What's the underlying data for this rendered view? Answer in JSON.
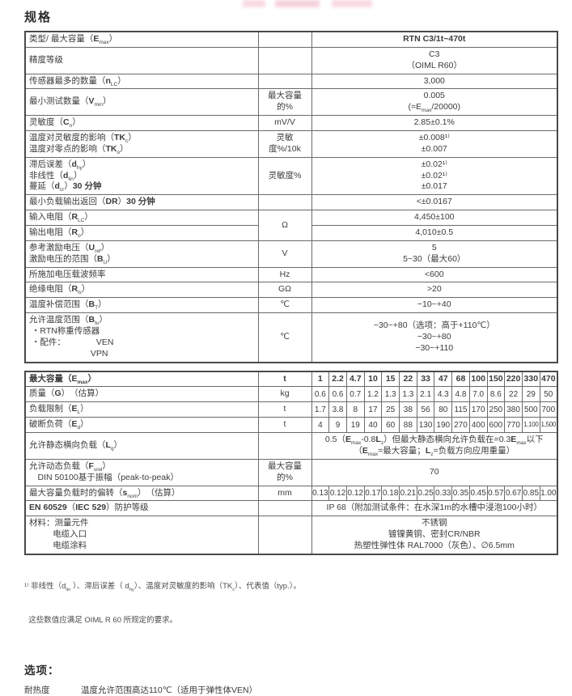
{
  "page": {
    "title": "规格"
  },
  "spec_table": {
    "rows": [
      {
        "label": "类型/ 最大容量（*{E}_{max}）",
        "unit": "",
        "value": "RTN C3/1t~470t"
      },
      {
        "label": "精度等级",
        "unit": "",
        "value": "C3\n（OIML R60）"
      },
      {
        "label": "传感器最多的数量（*{n}_{LC}）",
        "unit": "",
        "value": "3,000"
      },
      {
        "label": "最小测试数量（*{V}_{min}）",
        "unit": "最大容量的%",
        "value": "0.005\n(=E_{max}/20000)"
      },
      {
        "label": "灵敏度（*{C}_{n}）",
        "unit": "mV/V",
        "value": "2.85±0.1%"
      },
      {
        "label": "温度对灵敏度的影响（*{TK}_{c}）\n温度对零点的影响（*{TK}_{o}）",
        "unit": "灵敏度%/10k",
        "value": "±0.008¹⁾\n±0.007"
      },
      {
        "label": "滞后误差（*{d}_{hy}）\n非线性（*{d}_{lin}）\n蔓延（*{d}_{cr}）*{30 分钟}",
        "unit": "灵敏度%",
        "value": "±0.02¹⁾\n±0.02¹⁾\n±0.017"
      },
      {
        "label": "最小负载输出返回（*{DR}）*{30 分钟}",
        "unit": "",
        "value": "<±0.0167"
      },
      {
        "label": "输入电阻（*{R}_{LC}）",
        "unit": "Ω",
        "value": "4,450±100"
      },
      {
        "label": "输出电阻（*{R}_{o}）",
        "value": "4,010±0.5"
      },
      {
        "label": "参考激励电压（*{U}_{ref}）\n激励电压的范围（*{B}_{U}）",
        "unit": "V",
        "value": "5\n5~30（最大60）"
      },
      {
        "label": "所施加电压载波频率",
        "unit": "Hz",
        "value": "<600"
      },
      {
        "label": "绝缘电阻（*{R}_{is}）",
        "unit": "GΩ",
        "value": ">20"
      },
      {
        "label": "温度补偿范围（*{B}_{T}）",
        "unit": "℃",
        "value": "−10~+40"
      },
      {
        "label": "允许温度范围（*{B}_{tu}）\n ・RTN称重传感器\n ・配件：             VEN\n                          VPN",
        "unit": "℃",
        "value": "−30~+80（选项：高于+110℃）\n−30~+80\n−30~+110"
      }
    ]
  },
  "capacity_table": {
    "rows": [
      {
        "label": "最大容量（*{E}_{max}）",
        "unit": "t",
        "values": [
          "1",
          "2.2",
          "4.7",
          "10",
          "15",
          "22",
          "33",
          "47",
          "68",
          "100",
          "150",
          "220",
          "330",
          "470"
        ]
      },
      {
        "label": "质量（*{G}）　（估算）",
        "unit": "kg",
        "values": [
          "0.6",
          "0.6",
          "0.7",
          "1.2",
          "1.3",
          "1.3",
          "2.1",
          "4.3",
          "4.8",
          "7.0",
          "8.6",
          "22",
          "29",
          "50"
        ]
      },
      {
        "label": "负载限制（*{E}_{L}）",
        "unit": "t",
        "values": [
          "1.7",
          "3.8",
          "8",
          "17",
          "25",
          "38",
          "56",
          "80",
          "115",
          "170",
          "250",
          "380",
          "500",
          "700"
        ]
      },
      {
        "label": "破断负荷（*{E}_{d}）",
        "unit": "t",
        "values": [
          "4",
          "9",
          "19",
          "40",
          "60",
          "88",
          "130",
          "190",
          "270",
          "400",
          "600",
          "770",
          "1,100",
          "1,500"
        ]
      },
      {
        "label": "允许静态横向负载（*{L}_{q}）",
        "unit": "",
        "span_value": "0.5（*{E}_{max}-0.8*{L}_{z}）但最大静态横向允许负载在=0.3*{E}_{max}以下\n（*{E}_{max}=最大容量；*{L}_{z}=负载方向应用重量）"
      },
      {
        "label": "允许动态负载（*{F}_{srel}）\n　DIN 50100基于振幅（peak-to-peak）",
        "unit": "最大容量的%",
        "span_value": "70"
      },
      {
        "label": "最大容量负载时的偏转（*{s}_{nom}）　（估算）",
        "unit": "mm",
        "values": [
          "0.13",
          "0.12",
          "0.12",
          "0.17",
          "0.18",
          "0.21",
          "0.25",
          "0.33",
          "0.35",
          "0.45",
          "0.57",
          "0.67",
          "0.85",
          "1.00"
        ]
      },
      {
        "label": "*{EN 60529}（*{IEC 529}）防护等级",
        "unit": "",
        "span_value": "IP 68（附加测试条件：在水深1m的水槽中浸泡100小时）"
      },
      {
        "label": "材料：测量元件\n          电缆入口\n          电缆涂料",
        "unit": "",
        "span_value": "不锈钢\n镀镍黄铜、密封CR/NBR\n热塑性弹性体 RAL7000（灰色）、∅6.5mm"
      }
    ]
  },
  "footnote": {
    "line1": "¹⁾ 非线性（d_{lin} ）、滞后误差（ d_{hy}）、温度对灵敏度的影响（TK_{c}）、代表值（typ.）。",
    "line2": "  这些数值应满足 OIML R 60 所规定的要求。"
  },
  "options": {
    "title": "选项：",
    "items": [
      {
        "label": "耐热度",
        "text": "温度允许范围高达110℃（适用于弹性体VEN）"
      }
    ]
  }
}
